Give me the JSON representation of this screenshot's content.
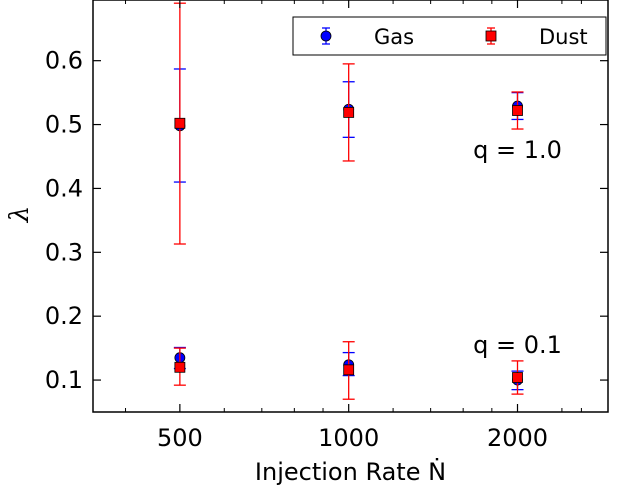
{
  "chart_data": {
    "type": "scatter",
    "title": "",
    "xlabel": "Injection Rate Ṅ",
    "ylabel": "λ",
    "x_scale": "log",
    "xlim": [
      350,
      2900
    ],
    "ylim": [
      0.05,
      0.695
    ],
    "x_ticks": [
      500,
      1000,
      2000
    ],
    "x_tick_labels": [
      "500",
      "1000",
      "2000"
    ],
    "y_ticks": [
      0.1,
      0.2,
      0.3,
      0.4,
      0.5,
      0.6
    ],
    "y_tick_labels": [
      "0.1",
      "0.2",
      "0.3",
      "0.4",
      "0.5",
      "0.6"
    ],
    "grid": false,
    "legend": {
      "placement": "top-right",
      "entries": [
        "Gas",
        "Dust"
      ]
    },
    "annotations": [
      {
        "text": "q = 1.0",
        "x": 2000,
        "y": 0.46
      },
      {
        "text": "q = 0.1",
        "x": 2000,
        "y": 0.155
      }
    ],
    "series": [
      {
        "name": "Gas",
        "group": "q = 1.0",
        "color": "#0000ff",
        "marker": "circle",
        "x": [
          500,
          1000,
          2000
        ],
        "y": [
          0.498,
          0.524,
          0.529
        ],
        "err_low": [
          0.41,
          0.48,
          0.508
        ],
        "err_high": [
          0.587,
          0.567,
          0.55
        ]
      },
      {
        "name": "Dust",
        "group": "q = 1.0",
        "color": "#ff0000",
        "marker": "square",
        "x": [
          500,
          1000,
          2000
        ],
        "y": [
          0.502,
          0.519,
          0.522
        ],
        "err_low": [
          0.313,
          0.443,
          0.493
        ],
        "err_high": [
          0.69,
          0.595,
          0.551
        ]
      },
      {
        "name": "Gas",
        "group": "q = 0.1",
        "color": "#0000ff",
        "marker": "circle",
        "x": [
          500,
          1000,
          2000
        ],
        "y": [
          0.135,
          0.124,
          0.1
        ],
        "err_low": [
          0.118,
          0.107,
          0.085
        ],
        "err_high": [
          0.151,
          0.143,
          0.114
        ]
      },
      {
        "name": "Dust",
        "group": "q = 0.1",
        "color": "#ff0000",
        "marker": "square",
        "x": [
          500,
          1000,
          2000
        ],
        "y": [
          0.12,
          0.116,
          0.104
        ],
        "err_low": [
          0.092,
          0.07,
          0.078
        ],
        "err_high": [
          0.15,
          0.16,
          0.13
        ]
      }
    ]
  }
}
